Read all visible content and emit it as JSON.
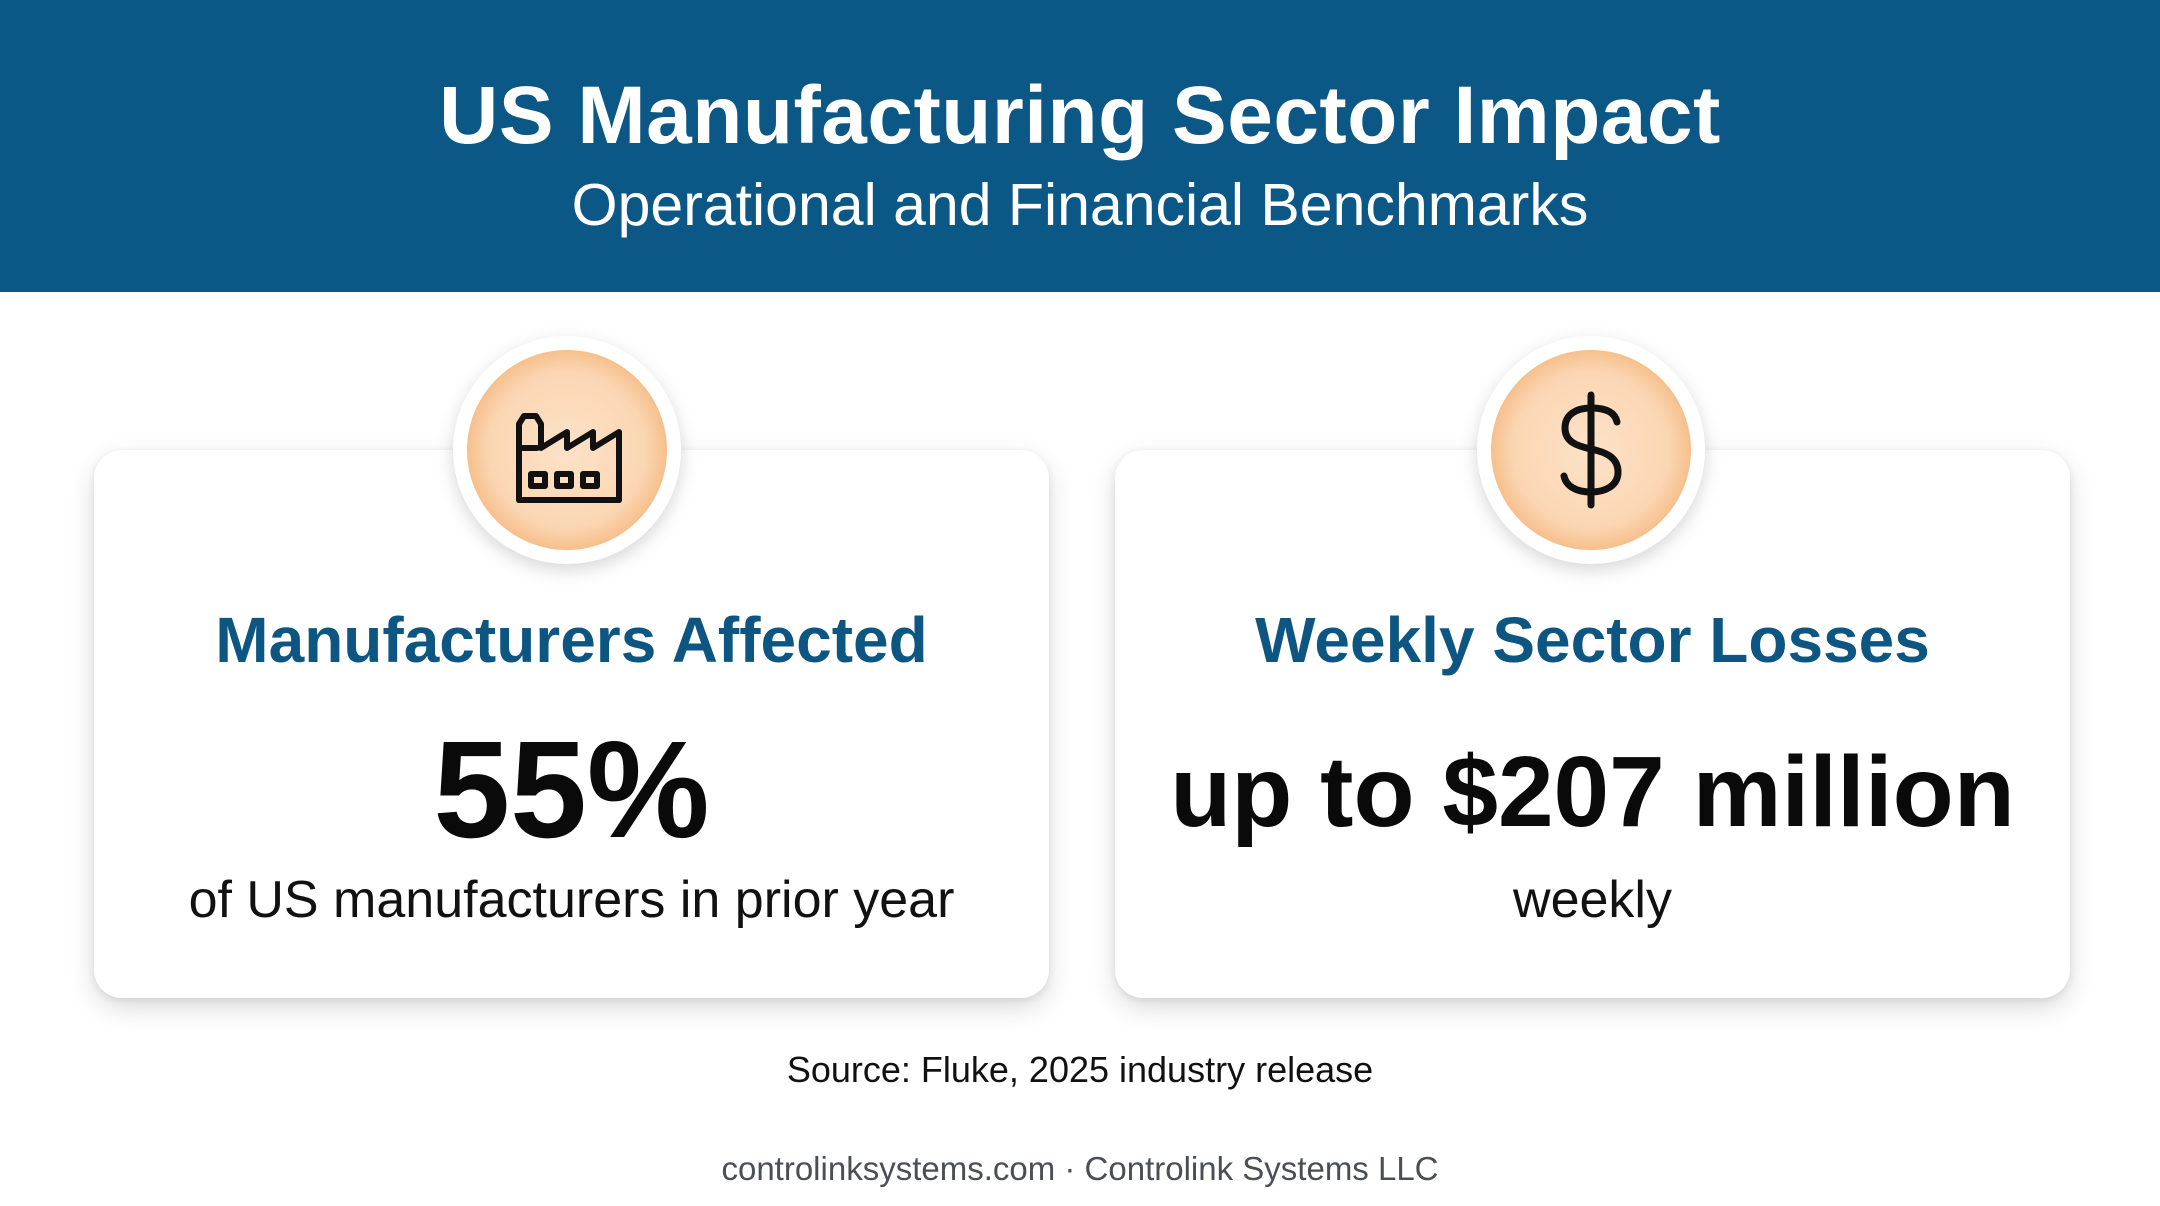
{
  "header": {
    "title": "US Manufacturing Sector Impact",
    "subtitle": "Operational and Financial Benchmarks",
    "background_color": "#0b5786"
  },
  "cards": [
    {
      "icon": "factory-icon",
      "heading": "Manufacturers Affected",
      "value": "55%",
      "caption": "of US manufacturers in prior year"
    },
    {
      "icon": "dollar-sign-icon",
      "heading": "Weekly Sector Losses",
      "value": "up to $207 million",
      "caption": "weekly"
    }
  ],
  "source": "Source: Fluke, 2025 industry release",
  "footer": "controlinksystems.com · Controlink Systems LLC",
  "colors": {
    "heading": "#0e5682",
    "badge": "#fbd6b3",
    "badge_ring": "#f4b57a"
  }
}
